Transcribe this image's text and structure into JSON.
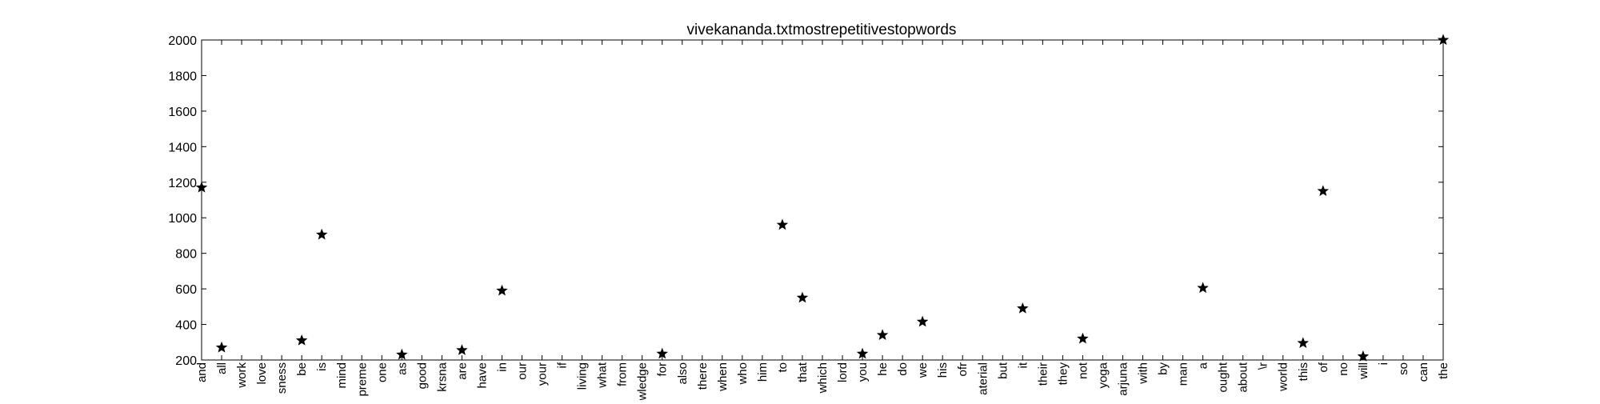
{
  "chart_data": {
    "type": "scatter",
    "title": "vivekananda.txtmostrepetitivestopwords",
    "xlabel": "",
    "ylabel": "",
    "ylim": [
      200,
      2000
    ],
    "yticks": [
      200,
      400,
      600,
      800,
      1000,
      1200,
      1400,
      1600,
      1800,
      2000
    ],
    "grid": false,
    "marker": "star",
    "marker_color": "#000000",
    "categories": [
      "and",
      "all",
      "work",
      "love",
      "sness",
      "be",
      "is",
      "mind",
      "preme",
      "one",
      "as",
      "good",
      "krsna",
      "are",
      "have",
      "in",
      "our",
      "your",
      "if",
      "living",
      "what",
      "from",
      "wledge",
      "for",
      "also",
      "there",
      "when",
      "who",
      "him",
      "to",
      "that",
      "which",
      "lord",
      "you",
      "he",
      "do",
      "we",
      "his",
      "ofr",
      "aterial",
      "but",
      "it",
      "their",
      "they",
      "not",
      "yoga",
      "arjuna",
      "with",
      "by",
      "man",
      "a",
      "ought",
      "about",
      "\\r",
      "world",
      "this",
      "of",
      "no",
      "will",
      "i",
      "so",
      "can",
      "the"
    ],
    "values": [
      1170,
      270,
      null,
      null,
      null,
      310,
      905,
      null,
      null,
      null,
      230,
      null,
      null,
      255,
      null,
      590,
      null,
      null,
      null,
      null,
      null,
      null,
      null,
      235,
      null,
      null,
      null,
      null,
      null,
      960,
      550,
      null,
      null,
      235,
      340,
      null,
      415,
      null,
      null,
      null,
      null,
      490,
      null,
      null,
      320,
      null,
      null,
      null,
      null,
      null,
      605,
      null,
      null,
      null,
      null,
      295,
      1150,
      null,
      220,
      null,
      null,
      null,
      2000
    ]
  }
}
